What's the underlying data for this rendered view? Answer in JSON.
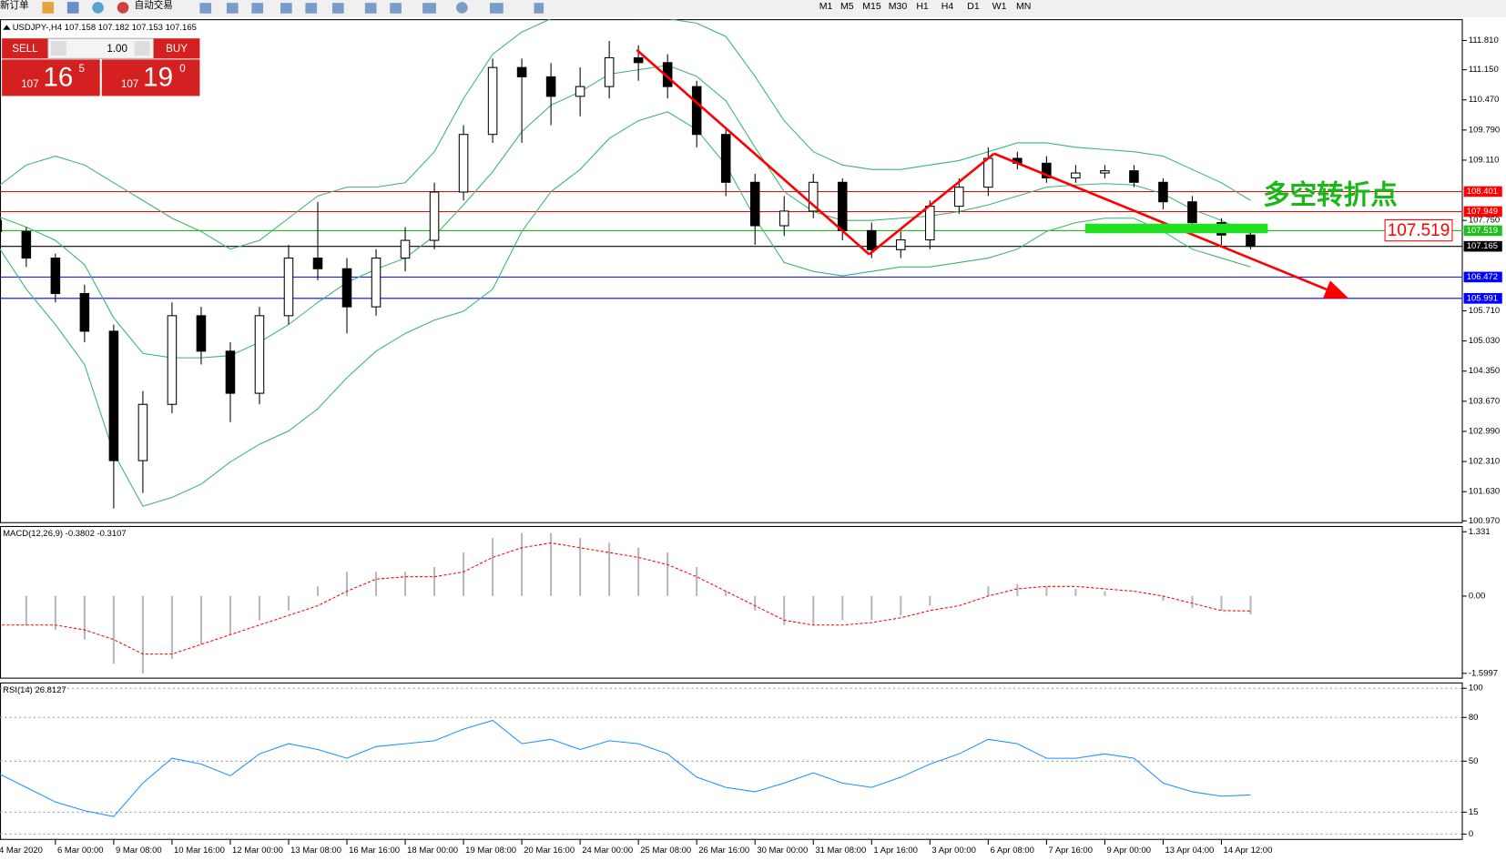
{
  "toolbar": {
    "new_order": "新订单",
    "auto_trading": "自动交易",
    "timeframes": [
      "M1",
      "M5",
      "M15",
      "M30",
      "H1",
      "H4",
      "D1",
      "W1",
      "MN"
    ]
  },
  "trade_panel": {
    "sell": "SELL",
    "buy": "BUY",
    "lots": "1.00",
    "sell_price": {
      "big": "107",
      "main": "16",
      "small": "5"
    },
    "buy_price": {
      "big": "107",
      "main": "19",
      "small": "0"
    }
  },
  "chart_data": [
    {
      "type": "candlestick",
      "title": "USDJPY-,H4  107.158 107.182 107.153 107.165",
      "categories": [
        "4 Mar 2020",
        null,
        "6 Mar 00:00",
        null,
        "9 Mar 08:00",
        null,
        "10 Mar 16:00",
        null,
        "12 Mar 00:00",
        null,
        "13 Mar 08:00",
        null,
        "16 Mar 16:00",
        null,
        "18 Mar 00:00",
        null,
        "19 Mar 08:00",
        null,
        "20 Mar 16:00",
        null,
        "24 Mar 00:00",
        null,
        "25 Mar 08:00",
        null,
        "26 Mar 16:00",
        null,
        "30 Mar 00:00",
        null,
        "31 Mar 08:00",
        null,
        "1 Apr 16:00",
        null,
        "3 Apr 00:00",
        null,
        "6 Apr 08:00",
        null,
        "7 Apr 16:00",
        null,
        "9 Apr 00:00",
        null,
        "13 Apr 04:00",
        null,
        "14 Apr 12:00",
        null
      ],
      "open": [
        107.75,
        107.5,
        106.9,
        106.1,
        105.25,
        102.33,
        103.6,
        105.6,
        104.8,
        103.85,
        105.6,
        106.9,
        106.66,
        105.8,
        106.9,
        107.3,
        108.39,
        109.69,
        111.2,
        110.99,
        110.55,
        110.77,
        111.42,
        111.31,
        110.77,
        109.69,
        108.61,
        107.63,
        107.96,
        108.61,
        107.52,
        107.09,
        107.31,
        108.07,
        108.5,
        109.15,
        109.04,
        108.71,
        108.82,
        108.87,
        108.61,
        108.17,
        107.7,
        107.42
      ],
      "high": [
        107.9,
        107.6,
        107.0,
        106.3,
        105.4,
        103.9,
        105.9,
        105.8,
        105.0,
        105.8,
        107.2,
        108.17,
        106.9,
        107.1,
        107.6,
        108.6,
        109.9,
        111.4,
        111.4,
        111.3,
        111.2,
        111.8,
        111.7,
        111.5,
        110.9,
        109.8,
        108.8,
        108.3,
        108.8,
        108.7,
        107.7,
        107.5,
        108.2,
        108.7,
        109.4,
        109.3,
        109.2,
        109.0,
        109.0,
        109.0,
        108.7,
        108.3,
        107.8,
        107.5
      ],
      "low": [
        107.35,
        106.7,
        105.9,
        105.0,
        101.25,
        101.6,
        103.4,
        104.5,
        103.2,
        103.6,
        105.4,
        106.4,
        105.2,
        105.6,
        106.6,
        107.1,
        108.2,
        109.5,
        109.5,
        109.9,
        110.1,
        110.5,
        110.9,
        110.5,
        109.4,
        108.3,
        107.2,
        107.4,
        107.8,
        107.3,
        106.9,
        106.9,
        107.1,
        107.9,
        108.3,
        108.9,
        108.6,
        108.6,
        108.7,
        108.5,
        108.0,
        107.6,
        107.2,
        107.1
      ],
      "close": [
        107.5,
        106.9,
        106.1,
        105.25,
        102.33,
        103.6,
        105.6,
        104.8,
        103.85,
        105.6,
        106.9,
        106.66,
        105.8,
        106.9,
        107.3,
        108.39,
        109.69,
        111.2,
        110.99,
        110.55,
        110.77,
        111.42,
        111.31,
        110.77,
        109.69,
        108.61,
        107.63,
        107.96,
        108.61,
        107.52,
        107.09,
        107.31,
        108.07,
        108.5,
        109.15,
        109.04,
        108.71,
        108.82,
        108.87,
        108.61,
        108.17,
        107.7,
        107.42,
        107.165
      ],
      "up_color": "#ffffff",
      "down_color": "#000000",
      "wick_color": "#000000",
      "bands": {
        "color": "#3cb371",
        "upper": [
          108.5,
          109.0,
          109.2,
          109.0,
          108.6,
          108.2,
          107.8,
          107.5,
          107.1,
          107.3,
          107.8,
          108.3,
          108.5,
          108.5,
          108.6,
          109.3,
          110.5,
          111.5,
          112.0,
          112.3,
          112.4,
          112.5,
          112.3,
          112.3,
          112.2,
          111.9,
          111.0,
          110.0,
          109.3,
          109.0,
          108.9,
          108.9,
          109.0,
          109.1,
          109.3,
          109.5,
          109.5,
          109.4,
          109.35,
          109.3,
          109.2,
          108.9,
          108.6,
          108.2
        ],
        "middle": [
          107.85,
          107.6,
          107.3,
          106.75,
          105.55,
          104.75,
          104.65,
          104.65,
          104.7,
          105.0,
          105.4,
          105.9,
          106.35,
          106.65,
          106.9,
          107.4,
          108.1,
          108.85,
          109.75,
          110.35,
          110.65,
          111.05,
          111.15,
          111.25,
          111.0,
          110.45,
          109.4,
          108.4,
          107.95,
          107.75,
          107.75,
          107.8,
          107.85,
          107.95,
          108.1,
          108.3,
          108.5,
          108.55,
          108.58,
          108.55,
          108.35,
          108.0,
          107.75,
          107.45
        ],
        "lower": [
          107.2,
          106.2,
          105.4,
          104.5,
          102.5,
          101.3,
          101.5,
          101.8,
          102.3,
          102.7,
          103.0,
          103.5,
          104.2,
          104.8,
          105.2,
          105.5,
          105.7,
          106.2,
          107.5,
          108.4,
          108.9,
          109.6,
          110.0,
          110.2,
          109.8,
          109.0,
          107.8,
          106.8,
          106.6,
          106.5,
          106.6,
          106.7,
          106.7,
          106.8,
          106.9,
          107.1,
          107.5,
          107.7,
          107.8,
          107.8,
          107.5,
          107.1,
          106.9,
          106.7
        ]
      },
      "hlines": [
        {
          "value": 108.401,
          "color": "#ff0000"
        },
        {
          "value": 107.949,
          "color": "#ff0000"
        },
        {
          "value": 107.519,
          "color": "#1fbf1f"
        },
        {
          "value": 107.165,
          "color": "#000000"
        },
        {
          "value": 106.472,
          "color": "#0000ff"
        },
        {
          "value": 105.991,
          "color": "#0000ff"
        }
      ],
      "annotation": "多空转折点",
      "ylim": [
        100.92,
        112.29
      ],
      "yticks": [
        {
          "value": 111.81,
          "label": "111.810"
        },
        {
          "value": 111.15,
          "label": "111.150"
        },
        {
          "value": 110.47,
          "label": "110.470"
        },
        {
          "value": 109.79,
          "label": "109.790"
        },
        {
          "value": 109.11,
          "label": "109.110"
        },
        {
          "value": 107.75,
          "label": "107.750"
        },
        {
          "value": 105.71,
          "label": "105.710"
        },
        {
          "value": 105.03,
          "label": "105.030"
        },
        {
          "value": 104.35,
          "label": "104.350"
        },
        {
          "value": 103.67,
          "label": "103.670"
        },
        {
          "value": 102.99,
          "label": "102.990"
        },
        {
          "value": 102.31,
          "label": "102.310"
        },
        {
          "value": 101.63,
          "label": "101.630"
        },
        {
          "value": 100.97,
          "label": "100.970"
        }
      ]
    },
    {
      "type": "macd",
      "title": "MACD(12,26,9) -0.3802 -0.3107",
      "histogram": {
        "color": "#b8b8b8",
        "values": [
          -0.5,
          -0.6,
          -0.7,
          -0.9,
          -1.4,
          -1.6,
          -1.3,
          -1.0,
          -0.8,
          -0.5,
          -0.3,
          0.2,
          0.5,
          0.5,
          0.5,
          0.6,
          0.9,
          1.2,
          1.3,
          1.3,
          1.2,
          1.1,
          1.0,
          0.9,
          0.6,
          0.1,
          -0.3,
          -0.6,
          -0.6,
          -0.5,
          -0.5,
          -0.4,
          -0.2,
          0.0,
          0.2,
          0.25,
          0.2,
          0.15,
          0.1,
          0.0,
          -0.1,
          -0.25,
          -0.3,
          -0.38
        ]
      },
      "signal": {
        "color": "#ff0000",
        "values": [
          -0.6,
          -0.6,
          -0.6,
          -0.7,
          -0.9,
          -1.2,
          -1.2,
          -1.0,
          -0.8,
          -0.6,
          -0.4,
          -0.2,
          0.1,
          0.35,
          0.4,
          0.4,
          0.5,
          0.8,
          1.0,
          1.1,
          1.0,
          0.9,
          0.8,
          0.65,
          0.4,
          0.1,
          -0.2,
          -0.5,
          -0.6,
          -0.6,
          -0.55,
          -0.45,
          -0.3,
          -0.2,
          0.0,
          0.15,
          0.2,
          0.2,
          0.15,
          0.1,
          0.0,
          -0.15,
          -0.3,
          -0.31
        ]
      },
      "ylim": [
        -1.709,
        1.45
      ],
      "yticks": [
        1.331,
        {
          "value": 0,
          "label": "0.00"
        },
        -1.5997
      ]
    },
    {
      "type": "line",
      "title": "RSI(14) 26.8127",
      "color": "#1e90ff",
      "values": [
        42,
        32,
        22,
        16,
        12,
        35,
        52,
        48,
        40,
        55,
        62,
        58,
        52,
        60,
        62,
        64,
        72,
        78,
        62,
        65,
        58,
        64,
        62,
        55,
        39,
        32,
        29,
        35,
        42,
        35,
        32,
        39,
        48,
        55,
        65,
        62,
        52,
        52,
        55,
        52,
        35,
        29,
        26,
        26.8127
      ],
      "ylim": [
        -4,
        104
      ],
      "yticks": [
        100,
        80,
        50,
        15,
        0
      ]
    }
  ]
}
